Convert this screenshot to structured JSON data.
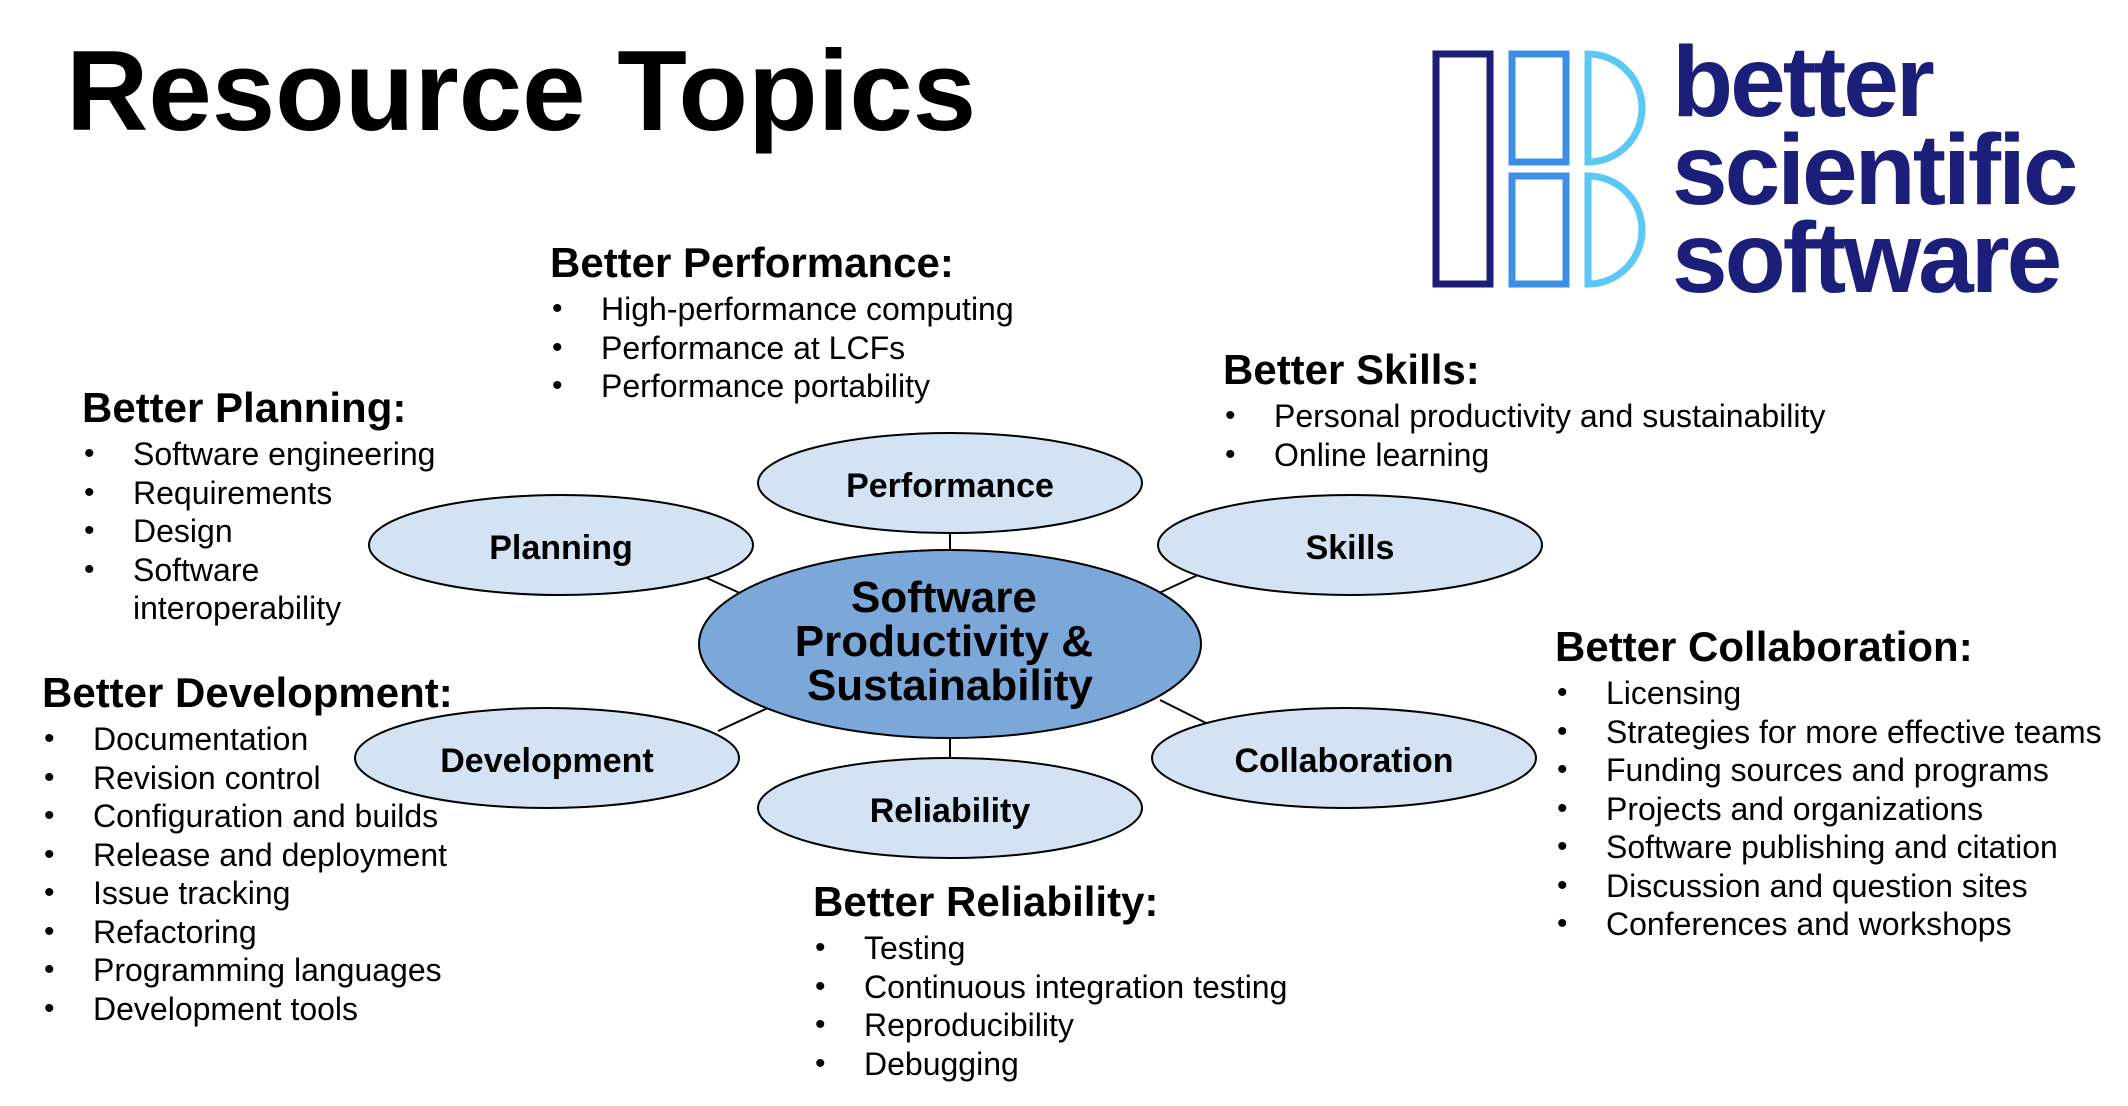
{
  "title": "Resource Topics",
  "logo": {
    "lines": [
      "better",
      "scientific",
      "software"
    ],
    "colors": {
      "text": "#1b1f7a",
      "bar_dark": "#1b1f7a",
      "bar_mid": "#3f8ee6",
      "bar_light": "#5bc8f5"
    }
  },
  "diagram": {
    "center": {
      "lines": [
        "Software",
        "Productivity &",
        "Sustainability"
      ]
    },
    "nodes": {
      "performance": "Performance",
      "planning": "Planning",
      "skills": "Skills",
      "development": "Development",
      "collaboration": "Collaboration",
      "reliability": "Reliability"
    },
    "colors": {
      "center_fill": "#7ba7d9",
      "node_fill": "#d4e3f4",
      "stroke": "#000000"
    }
  },
  "topics": {
    "performance": {
      "heading": "Better Performance:",
      "items": [
        "High-performance computing",
        "Performance at LCFs",
        "Performance portability"
      ]
    },
    "planning": {
      "heading": "Better Planning:",
      "items": [
        "Software engineering",
        "Requirements",
        "Design",
        "Software interoperability"
      ]
    },
    "skills": {
      "heading": "Better Skills:",
      "items": [
        "Personal productivity and sustainability",
        "Online learning"
      ]
    },
    "development": {
      "heading": "Better Development:",
      "items": [
        "Documentation",
        "Revision control",
        "Configuration and builds",
        "Release and deployment",
        "Issue tracking",
        "Refactoring",
        "Programming languages",
        "Development tools"
      ]
    },
    "collaboration": {
      "heading": "Better Collaboration:",
      "items": [
        "Licensing",
        "Strategies for more effective teams",
        "Funding sources and programs",
        "Projects and organizations",
        "Software publishing and citation",
        "Discussion and question sites",
        "Conferences and workshops"
      ]
    },
    "reliability": {
      "heading": "Better Reliability:",
      "items": [
        "Testing",
        "Continuous integration testing",
        "Reproducibility",
        "Debugging"
      ]
    }
  }
}
